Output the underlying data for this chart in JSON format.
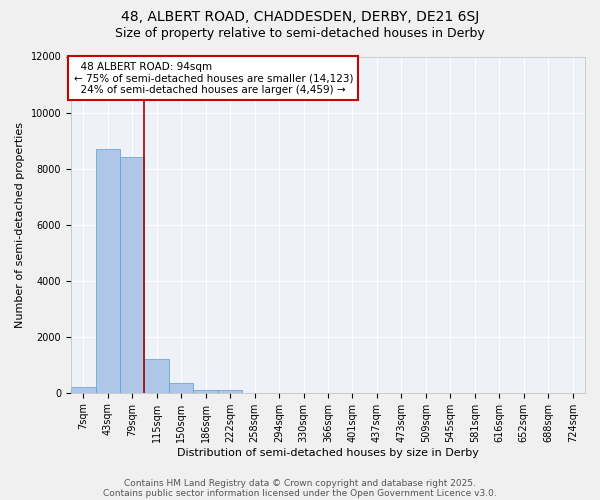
{
  "title_line1": "48, ALBERT ROAD, CHADDESDEN, DERBY, DE21 6SJ",
  "title_line2": "Size of property relative to semi-detached houses in Derby",
  "xlabel": "Distribution of semi-detached houses by size in Derby",
  "ylabel": "Number of semi-detached properties",
  "bin_labels": [
    "7sqm",
    "43sqm",
    "79sqm",
    "115sqm",
    "150sqm",
    "186sqm",
    "222sqm",
    "258sqm",
    "294sqm",
    "330sqm",
    "366sqm",
    "401sqm",
    "437sqm",
    "473sqm",
    "509sqm",
    "545sqm",
    "581sqm",
    "616sqm",
    "652sqm",
    "688sqm",
    "724sqm"
  ],
  "bar_heights": [
    200,
    8700,
    8400,
    1200,
    350,
    100,
    80,
    0,
    0,
    0,
    0,
    0,
    0,
    0,
    0,
    0,
    0,
    0,
    0,
    0,
    0
  ],
  "bar_color": "#aec6e8",
  "bar_edge_color": "#5a9fd4",
  "red_line_x": 2.5,
  "property_label": "48 ALBERT ROAD: 94sqm",
  "pct_smaller": 75,
  "pct_larger": 24,
  "count_smaller": 14123,
  "count_larger": 4459,
  "annotation_box_color": "#cc0000",
  "ylim": [
    0,
    12000
  ],
  "yticks": [
    0,
    2000,
    4000,
    6000,
    8000,
    10000,
    12000
  ],
  "footer_line1": "Contains HM Land Registry data © Crown copyright and database right 2025.",
  "footer_line2": "Contains public sector information licensed under the Open Government Licence v3.0.",
  "background_color": "#eef2f8",
  "grid_color": "#ffffff",
  "title_fontsize": 10,
  "subtitle_fontsize": 9,
  "axis_label_fontsize": 8,
  "tick_fontsize": 7,
  "annotation_fontsize": 7.5,
  "footer_fontsize": 6.5
}
